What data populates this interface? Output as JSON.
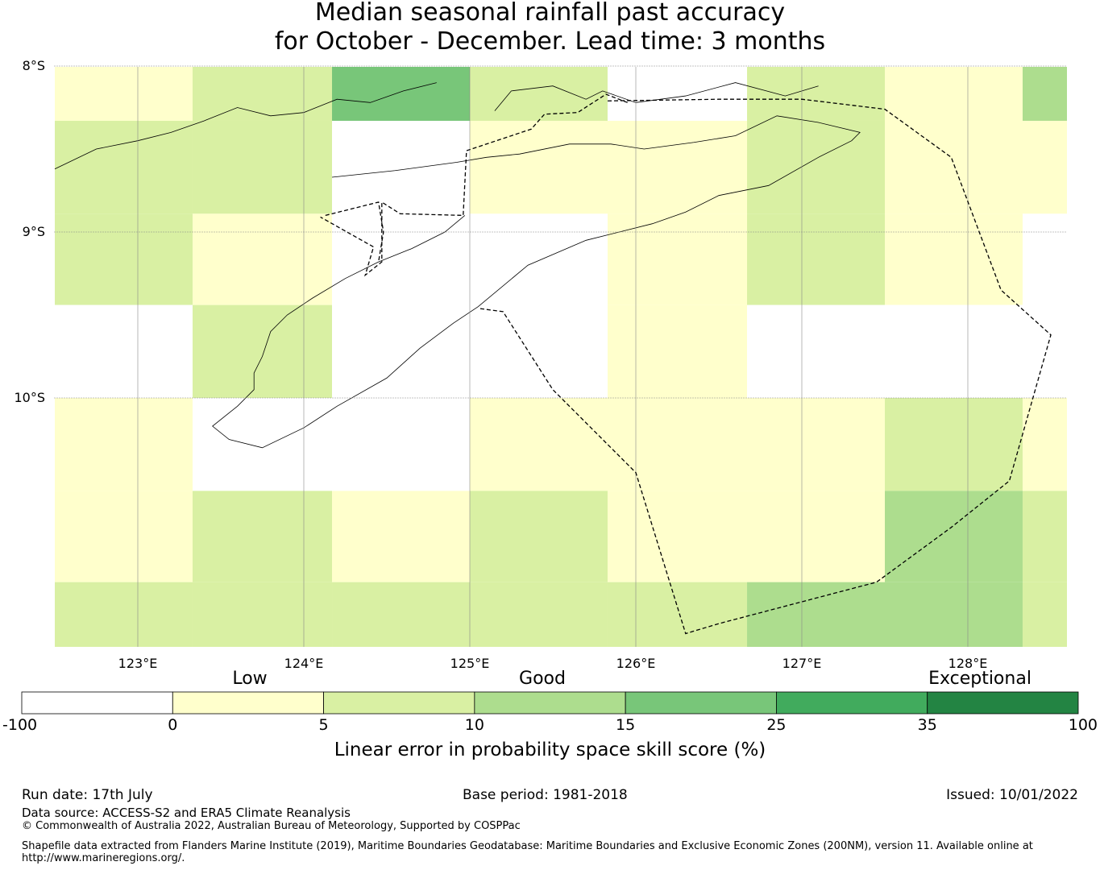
{
  "title": {
    "line1": "Median seasonal rainfall past accuracy",
    "line2": "for October - December. Lead time: 3 months"
  },
  "map": {
    "lon_range": [
      122.5,
      128.6
    ],
    "lat_range": [
      -11.5,
      -8.0
    ],
    "lat_ticks": [
      {
        "value": -8,
        "label": "8°S"
      },
      {
        "value": -9,
        "label": "9°S"
      },
      {
        "value": -10,
        "label": "10°S"
      }
    ],
    "lon_ticks": [
      {
        "value": 123,
        "label": "123°E"
      },
      {
        "value": 124,
        "label": "124°E"
      },
      {
        "value": 125,
        "label": "125°E"
      },
      {
        "value": 126,
        "label": "126°E"
      },
      {
        "value": 127,
        "label": "127°E"
      },
      {
        "value": 128,
        "label": "128°E"
      }
    ],
    "grid_lon_edges": [
      122.5,
      123.33,
      124.17,
      125.0,
      125.83,
      126.67,
      127.5,
      128.33,
      128.6
    ],
    "grid_lat_edges": [
      -8.0,
      -8.33,
      -8.89,
      -9.44,
      -10.0,
      -10.56,
      -11.11,
      -11.5
    ],
    "grid_classes": [
      [
        1,
        2,
        4,
        2,
        0,
        2,
        1,
        3
      ],
      [
        2,
        2,
        0,
        1,
        1,
        2,
        1,
        1
      ],
      [
        2,
        1,
        0,
        0,
        1,
        2,
        1,
        0
      ],
      [
        0,
        2,
        0,
        0,
        1,
        0,
        0,
        0
      ],
      [
        1,
        0,
        0,
        1,
        1,
        1,
        2,
        1
      ],
      [
        1,
        2,
        1,
        2,
        1,
        1,
        3,
        2
      ],
      [
        2,
        2,
        2,
        2,
        2,
        3,
        3,
        2
      ]
    ],
    "class_colors": [
      "#ffffff",
      "#ffffcc",
      "#d9f0a3",
      "#addd8e",
      "#78c679",
      "#41ab5d",
      "#238443"
    ],
    "eez_boundary": [
      [
        125.95,
        -8.22
      ],
      [
        125.82,
        -8.17
      ],
      [
        125.65,
        -8.28
      ],
      [
        125.45,
        -8.29
      ],
      [
        125.37,
        -8.38
      ],
      [
        124.98,
        -8.51
      ],
      [
        124.96,
        -8.9
      ],
      [
        124.58,
        -8.89
      ],
      [
        124.47,
        -8.82
      ],
      [
        124.47,
        -9.18
      ],
      [
        124.37,
        -9.26
      ],
      [
        124.42,
        -9.09
      ],
      [
        124.1,
        -8.91
      ]
    ],
    "eez_boundary_2": [
      [
        125.83,
        -8.21
      ],
      [
        126.5,
        -8.2
      ],
      [
        127.0,
        -8.2
      ],
      [
        127.5,
        -8.26
      ],
      [
        127.9,
        -8.55
      ],
      [
        128.2,
        -9.35
      ],
      [
        128.5,
        -9.62
      ],
      [
        128.25,
        -10.5
      ],
      [
        127.9,
        -10.78
      ],
      [
        127.45,
        -11.11
      ],
      [
        126.5,
        -11.36
      ],
      [
        126.3,
        -11.42
      ],
      [
        126.0,
        -10.45
      ],
      [
        125.8,
        -10.25
      ],
      [
        125.5,
        -9.95
      ],
      [
        125.2,
        -9.48
      ],
      [
        125.05,
        -9.46
      ]
    ],
    "eez_boundary_3": [
      [
        124.13,
        -8.9
      ],
      [
        124.45,
        -8.82
      ],
      [
        124.48,
        -9.0
      ],
      [
        124.45,
        -9.18
      ]
    ],
    "coast_timor_north": [
      [
        124.17,
        -8.67
      ],
      [
        124.55,
        -8.63
      ],
      [
        124.92,
        -8.58
      ],
      [
        125.1,
        -8.55
      ],
      [
        125.3,
        -8.53
      ],
      [
        125.6,
        -8.47
      ],
      [
        125.85,
        -8.47
      ],
      [
        126.05,
        -8.5
      ],
      [
        126.35,
        -8.46
      ],
      [
        126.6,
        -8.42
      ],
      [
        126.85,
        -8.3
      ],
      [
        127.1,
        -8.34
      ],
      [
        127.35,
        -8.4
      ],
      [
        127.3,
        -8.45
      ],
      [
        127.1,
        -8.55
      ],
      [
        126.8,
        -8.72
      ],
      [
        126.5,
        -8.78
      ],
      [
        126.3,
        -8.88
      ],
      [
        126.1,
        -8.95
      ],
      [
        125.7,
        -9.05
      ],
      [
        125.35,
        -9.2
      ],
      [
        125.05,
        -9.45
      ],
      [
        124.9,
        -9.55
      ],
      [
        124.7,
        -9.7
      ],
      [
        124.5,
        -9.88
      ],
      [
        124.2,
        -10.05
      ],
      [
        124.0,
        -10.18
      ],
      [
        123.75,
        -10.3
      ],
      [
        123.55,
        -10.25
      ],
      [
        123.45,
        -10.17
      ],
      [
        123.6,
        -10.05
      ],
      [
        123.7,
        -9.95
      ],
      [
        123.7,
        -9.85
      ],
      [
        123.75,
        -9.75
      ],
      [
        123.8,
        -9.6
      ],
      [
        123.9,
        -9.5
      ],
      [
        124.05,
        -9.4
      ],
      [
        124.25,
        -9.28
      ],
      [
        124.45,
        -9.18
      ],
      [
        124.65,
        -9.1
      ],
      [
        124.85,
        -9.0
      ],
      [
        124.97,
        -8.9
      ]
    ],
    "coast_flores": [
      [
        122.5,
        -8.62
      ],
      [
        122.75,
        -8.5
      ],
      [
        123.0,
        -8.45
      ],
      [
        123.2,
        -8.4
      ],
      [
        123.4,
        -8.33
      ],
      [
        123.6,
        -8.25
      ],
      [
        123.8,
        -8.3
      ],
      [
        124.0,
        -8.28
      ],
      [
        124.2,
        -8.2
      ],
      [
        124.4,
        -8.22
      ],
      [
        124.6,
        -8.15
      ],
      [
        124.8,
        -8.1
      ]
    ],
    "coast_wetar": [
      [
        125.15,
        -8.27
      ],
      [
        125.25,
        -8.15
      ],
      [
        125.5,
        -8.12
      ],
      [
        125.7,
        -8.2
      ],
      [
        125.8,
        -8.15
      ],
      [
        126.0,
        -8.22
      ],
      [
        126.3,
        -8.18
      ],
      [
        126.6,
        -8.1
      ],
      [
        126.9,
        -8.18
      ],
      [
        127.1,
        -8.12
      ]
    ]
  },
  "legend": {
    "categories": [
      "Low",
      "Good",
      "Exceptional"
    ],
    "ticks": [
      "-100",
      "0",
      "5",
      "10",
      "15",
      "25",
      "35",
      "100"
    ],
    "colors": [
      "#ffffff",
      "#ffffcc",
      "#d9f0a3",
      "#addd8e",
      "#78c679",
      "#41ab5d",
      "#238443"
    ],
    "title": "Linear error in probability space skill score (%)"
  },
  "footer": {
    "run_date": "Run date: 17th July",
    "base_period": "Base period: 1981-2018",
    "issued": "Issued: 10/01/2022",
    "data_source": "Data source: ACCESS-S2 and ERA5 Climate Reanalysis",
    "copyright": "© Commonwealth of Australia 2022, Australian Bureau of Meteorology, Supported by COSPPac",
    "shapefile_line1": "Shapefile data extracted from Flanders Marine Institute (2019), Maritime Boundaries Geodatabase: Maritime Boundaries and Exclusive Economic Zones (200NM), version 11. Available online at",
    "shapefile_line2": "http://www.marineregions.org/."
  }
}
